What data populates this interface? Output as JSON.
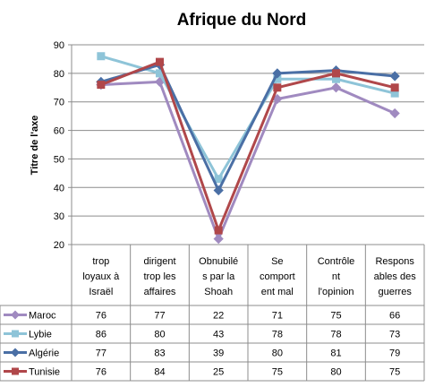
{
  "chart_data": {
    "type": "line",
    "title": "Afrique du Nord",
    "ylabel": "Titre de l'axe",
    "xlabel": "",
    "ylim": [
      20,
      90
    ],
    "yticks": [
      20,
      30,
      40,
      50,
      60,
      70,
      80,
      90
    ],
    "grid": true,
    "legend": "data-table-left",
    "categories": [
      [
        "trop",
        "loyaux à",
        "Israël"
      ],
      [
        "dirigent",
        "trop les",
        "affaires"
      ],
      [
        "Obnubilé",
        "s par la",
        "Shoah"
      ],
      [
        "Se",
        "comport",
        "ent mal"
      ],
      [
        "Contrôle",
        "nt",
        "l'opinion"
      ],
      [
        "Respons",
        "ables des",
        "guerres"
      ]
    ],
    "series": [
      {
        "name": "Maroc",
        "color": "#A08AC0",
        "marker": "diamond",
        "values": [
          76,
          77,
          22,
          71,
          75,
          66
        ]
      },
      {
        "name": "Lybie",
        "color": "#8EC4D8",
        "marker": "square",
        "values": [
          86,
          80,
          43,
          78,
          78,
          73
        ]
      },
      {
        "name": "Algérie",
        "color": "#4A6FA5",
        "marker": "diamond",
        "values": [
          77,
          83,
          39,
          80,
          81,
          79
        ]
      },
      {
        "name": "Tunisie",
        "color": "#B0474A",
        "marker": "square",
        "values": [
          76,
          84,
          25,
          75,
          80,
          75
        ]
      }
    ]
  }
}
